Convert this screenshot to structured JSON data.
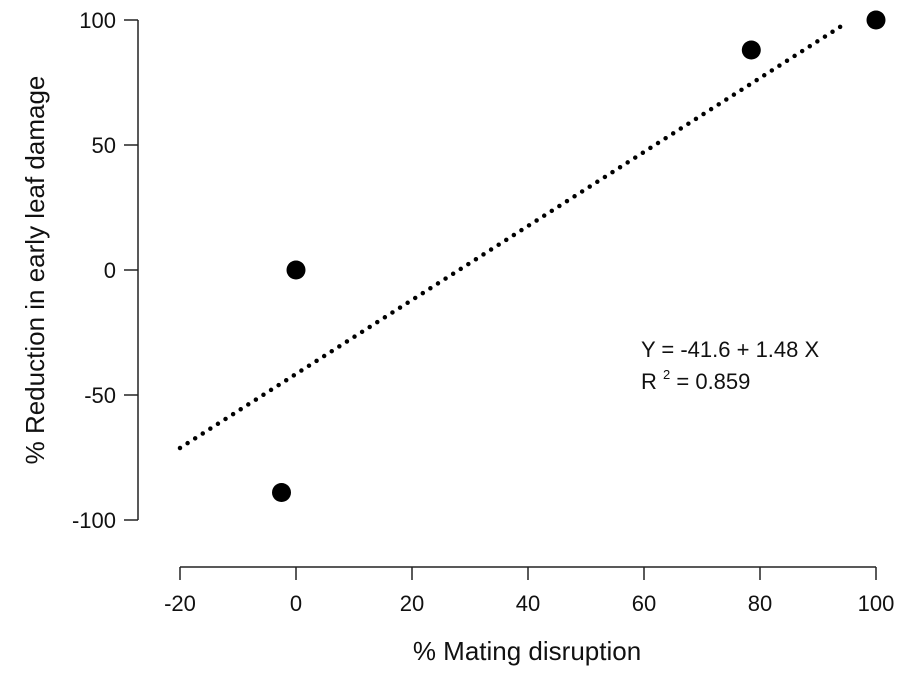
{
  "chart_data": {
    "type": "scatter",
    "title": "",
    "xlabel": "% Mating disruption",
    "ylabel": "% Reduction in early leaf damage",
    "xlim": [
      -20,
      100
    ],
    "ylim": [
      -100,
      100
    ],
    "xticks": [
      -20,
      0,
      20,
      40,
      60,
      80,
      100
    ],
    "yticks": [
      -100,
      -50,
      0,
      50,
      100
    ],
    "grid": false,
    "points": [
      {
        "x": -2.5,
        "y": -89
      },
      {
        "x": 0,
        "y": 0
      },
      {
        "x": 78.5,
        "y": 88
      },
      {
        "x": 100,
        "y": 100
      }
    ],
    "fit_line": {
      "intercept": -41.6,
      "slope": 1.48,
      "x_start": -20,
      "x_end": 95,
      "style": "dotted"
    },
    "annotations": {
      "equation": "Y = -41.6 + 1.48 X",
      "r2_prefix": "R",
      "r2_superscript": "2",
      "r2_value": "= 0.859"
    },
    "colors": {
      "points": "#000000",
      "line": "#000000",
      "axes": "#222222"
    }
  }
}
